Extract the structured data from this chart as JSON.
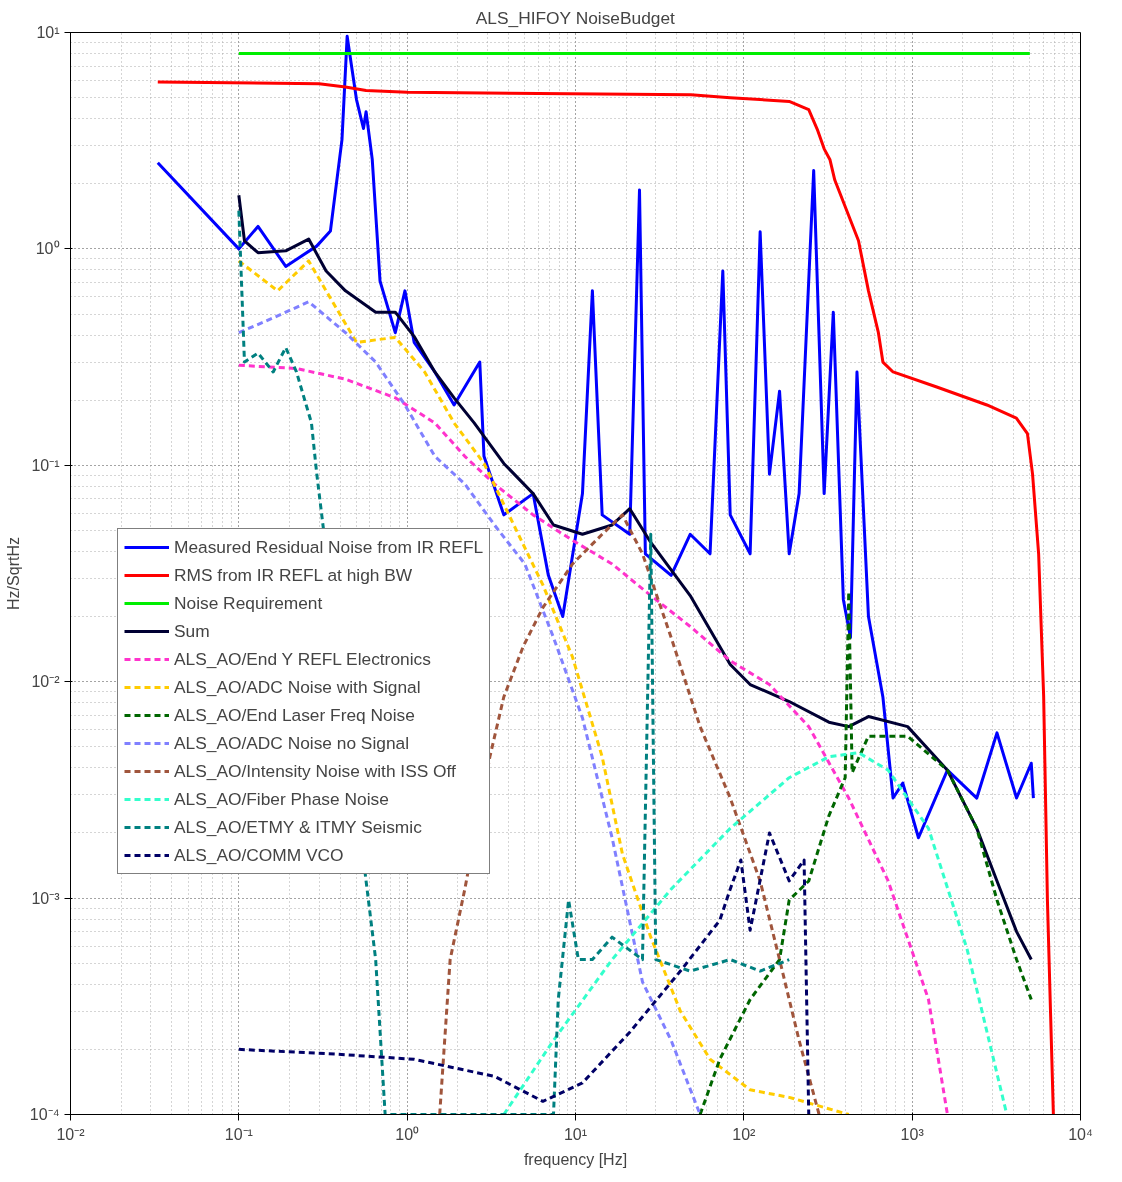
{
  "chart_data": {
    "type": "line",
    "title": "ALS_HIFOY NoiseBudget",
    "xlabel": "frequency [Hz]",
    "ylabel": "Hz/SqrtHz",
    "log": "xy",
    "grid": true,
    "legend": "left",
    "xlim": [
      0.01,
      10000
    ],
    "ylim": [
      0.0001,
      10
    ],
    "xticks": [
      {
        "value": 0.01,
        "label": "10⁻²"
      },
      {
        "value": 0.1,
        "label": "10⁻¹"
      },
      {
        "value": 1,
        "label": "10⁰"
      },
      {
        "value": 10,
        "label": "10¹"
      },
      {
        "value": 100,
        "label": "10²"
      },
      {
        "value": 1000,
        "label": "10³"
      },
      {
        "value": 10000,
        "label": "10⁴"
      }
    ],
    "yticks": [
      {
        "value": 0.0001,
        "label": "10⁻⁴"
      },
      {
        "value": 0.001,
        "label": "10⁻³"
      },
      {
        "value": 0.01,
        "label": "10⁻²"
      },
      {
        "value": 0.1,
        "label": "10⁻¹"
      },
      {
        "value": 1,
        "label": "10⁰"
      },
      {
        "value": 10,
        "label": "10¹"
      }
    ],
    "series": [
      {
        "name": "Measured Residual Noise from IR REFL",
        "color": "#0000ff",
        "line_style": "solid",
        "x": [
          0.033,
          0.1,
          0.13,
          0.19,
          0.29,
          0.35,
          0.41,
          0.44,
          0.5,
          0.55,
          0.57,
          0.62,
          0.69,
          0.85,
          0.97,
          1.1,
          1.46,
          1.9,
          2.7,
          2.86,
          3.75,
          5.6,
          6.9,
          8.4,
          11,
          12.6,
          14.4,
          21,
          24,
          26,
          37,
          48,
          63,
          75,
          83,
          109,
          125,
          142,
          163,
          186,
          213,
          260,
          300,
          340,
          390,
          430,
          470,
          550,
          670,
          770,
          880,
          1090,
          1620,
          2420,
          3190,
          4170,
          5100,
          5250
        ],
        "values": [
          2.5,
          1.0,
          1.27,
          0.83,
          1.03,
          1.21,
          3.2,
          9.6,
          4.9,
          3.6,
          4.3,
          2.6,
          0.71,
          0.41,
          0.64,
          0.37,
          0.27,
          0.19,
          0.3,
          0.11,
          0.059,
          0.074,
          0.031,
          0.02,
          0.074,
          0.64,
          0.059,
          0.048,
          1.87,
          0.039,
          0.031,
          0.048,
          0.039,
          0.79,
          0.059,
          0.039,
          1.2,
          0.091,
          0.22,
          0.039,
          0.074,
          2.3,
          0.074,
          0.51,
          0.024,
          0.016,
          0.27,
          0.02,
          0.0085,
          0.0029,
          0.0034,
          0.0019,
          0.0039,
          0.0029,
          0.0058,
          0.0029,
          0.0042,
          0.0029
        ]
      },
      {
        "name": "RMS from IR REFL at high BW",
        "color": "#ff0000",
        "line_style": "solid",
        "x": [
          0.033,
          0.3,
          0.43,
          0.57,
          1,
          48.5,
          83,
          186,
          243,
          273,
          300,
          325,
          347,
          480,
          550,
          630,
          670,
          770,
          1400,
          2780,
          4160,
          4840,
          5190,
          5640,
          6040,
          6360,
          6900
        ],
        "values": [
          5.9,
          5.8,
          5.6,
          5.4,
          5.3,
          5.15,
          5.0,
          4.8,
          4.4,
          3.57,
          2.9,
          2.58,
          2.08,
          1.09,
          0.64,
          0.41,
          0.3,
          0.27,
          0.23,
          0.19,
          0.165,
          0.14,
          0.091,
          0.039,
          0.0086,
          0.00098,
          0.0001
        ]
      },
      {
        "name": "Noise Requirement",
        "color": "#00ee00",
        "line_style": "solid",
        "x": [
          0.1,
          5000
        ],
        "values": [
          8,
          8
        ]
      },
      {
        "name": "Sum",
        "color": "#000033",
        "line_style": "solid",
        "x": [
          0.1,
          0.108,
          0.13,
          0.19,
          0.26,
          0.33,
          0.43,
          0.65,
          0.85,
          1.11,
          1.46,
          1.9,
          2.5,
          3.75,
          5.6,
          7.4,
          11,
          16.5,
          21,
          28,
          48,
          83,
          109,
          186,
          320,
          420,
          550,
          940,
          1620,
          2420,
          3190,
          4170,
          5100
        ],
        "values": [
          1.77,
          1.09,
          0.96,
          0.98,
          1.11,
          0.79,
          0.64,
          0.51,
          0.51,
          0.39,
          0.27,
          0.205,
          0.157,
          0.102,
          0.074,
          0.053,
          0.048,
          0.053,
          0.063,
          0.044,
          0.025,
          0.012,
          0.0097,
          0.0081,
          0.0065,
          0.0062,
          0.0069,
          0.0062,
          0.0039,
          0.0021,
          0.0012,
          0.0007,
          0.00052
        ]
      },
      {
        "name": "ALS_AO/End Y REFL Electronics",
        "color": "#ff33cc",
        "line_style": "dashed",
        "x": [
          0.1,
          0.22,
          0.43,
          0.85,
          1.46,
          2.2,
          3.3,
          5.6,
          9.6,
          16.5,
          28,
          48,
          83,
          142,
          243,
          420,
          720,
          1250,
          1620
        ],
        "values": [
          0.29,
          0.28,
          0.25,
          0.205,
          0.157,
          0.11,
          0.082,
          0.059,
          0.045,
          0.035,
          0.025,
          0.018,
          0.0125,
          0.0097,
          0.0062,
          0.0029,
          0.0012,
          0.00034,
          0.0001
        ]
      },
      {
        "name": "ALS_AO/ADC Noise with Signal",
        "color": "#ffcc00",
        "line_style": "dashed",
        "x": [
          0.1,
          0.17,
          0.26,
          0.33,
          0.5,
          0.85,
          1.27,
          1.9,
          2.86,
          4.3,
          6.4,
          9.6,
          14.4,
          19,
          28,
          42,
          63,
          109,
          186,
          420
        ],
        "values": [
          0.88,
          0.64,
          0.88,
          0.64,
          0.37,
          0.39,
          0.27,
          0.157,
          0.102,
          0.053,
          0.028,
          0.013,
          0.0045,
          0.0016,
          0.00066,
          0.0003,
          0.00018,
          0.00013,
          0.00012,
          0.0001
        ]
      },
      {
        "name": "ALS_AO/End Laser Freq Noise",
        "color": "#006600",
        "line_style": "dashed",
        "x": [
          55,
          72,
          109,
          163,
          186,
          243,
          320,
          400,
          420,
          440,
          550,
          940,
          1620,
          2420,
          3190,
          4170,
          5100
        ],
        "values": [
          0.0001,
          0.00018,
          0.00034,
          0.00052,
          0.00098,
          0.0012,
          0.0024,
          0.0036,
          0.026,
          0.0038,
          0.0056,
          0.0056,
          0.0039,
          0.0021,
          0.00098,
          0.00052,
          0.00034
        ]
      },
      {
        "name": "ALS_AO/ADC Noise no Signal",
        "color": "#8080ff",
        "line_style": "dashed",
        "x": [
          0.1,
          0.17,
          0.26,
          0.43,
          0.65,
          0.97,
          1.46,
          2.2,
          3.3,
          5,
          7.4,
          11,
          16.5,
          25,
          37,
          55
        ],
        "values": [
          0.41,
          0.49,
          0.57,
          0.41,
          0.3,
          0.19,
          0.11,
          0.082,
          0.053,
          0.035,
          0.016,
          0.0068,
          0.0019,
          0.00041,
          0.00022,
          0.0001
        ]
      },
      {
        "name": "ALS_AO/Intensity Noise with ISS Off",
        "color": "#a0553c",
        "line_style": "dashed",
        "x": [
          1.56,
          1.8,
          2.2,
          3.1,
          3.75,
          4.9,
          6.4,
          9.6,
          14.4,
          19,
          25,
          37,
          55,
          83,
          125,
          163,
          213,
          280
        ],
        "values": [
          0.0001,
          0.00052,
          0.0011,
          0.0045,
          0.0085,
          0.0146,
          0.022,
          0.035,
          0.048,
          0.059,
          0.039,
          0.016,
          0.0062,
          0.0029,
          0.0012,
          0.00052,
          0.00022,
          0.0001
        ]
      },
      {
        "name": "ALS_AO/Fiber Phase Noise",
        "color": "#33ffcc",
        "line_style": "dashed",
        "x": [
          3.75,
          7.4,
          16.5,
          37,
          83,
          186,
          320,
          480,
          720,
          1250,
          2120,
          3650
        ],
        "values": [
          0.0001,
          0.00022,
          0.00052,
          0.0011,
          0.0021,
          0.0036,
          0.0045,
          0.0047,
          0.0039,
          0.0021,
          0.00058,
          0.0001
        ]
      },
      {
        "name": "ALS_AO/ETMY & ITMY Seismic",
        "color": "#008080",
        "line_style": "dashed",
        "x": [
          0.1,
          0.108,
          0.13,
          0.16,
          0.19,
          0.22,
          0.27,
          0.29,
          0.57,
          0.65,
          0.74,
          7.4,
          7.9,
          9.1,
          10.4,
          12.6,
          16.5,
          25,
          28,
          30,
          48,
          83,
          125,
          186
        ],
        "values": [
          1.5,
          0.3,
          0.33,
          0.27,
          0.35,
          0.27,
          0.157,
          0.092,
          0.0012,
          0.00052,
          0.0001,
          0.0001,
          0.00034,
          0.00098,
          0.00052,
          0.00052,
          0.00066,
          0.00052,
          0.048,
          0.00052,
          0.00046,
          0.00052,
          0.00046,
          0.00052
        ]
      },
      {
        "name": "ALS_AO/COMM VCO",
        "color": "#000066",
        "line_style": "dashed",
        "x": [
          0.1,
          0.38,
          1.1,
          3.3,
          6.4,
          11,
          21,
          42,
          72,
          83,
          96,
          109,
          142,
          186,
          228,
          243
        ],
        "values": [
          0.0002,
          0.00019,
          0.00018,
          0.00015,
          0.000115,
          0.00014,
          0.00024,
          0.00046,
          0.00079,
          0.0011,
          0.0015,
          0.00071,
          0.002,
          0.0012,
          0.0015,
          0.0001
        ]
      }
    ]
  }
}
